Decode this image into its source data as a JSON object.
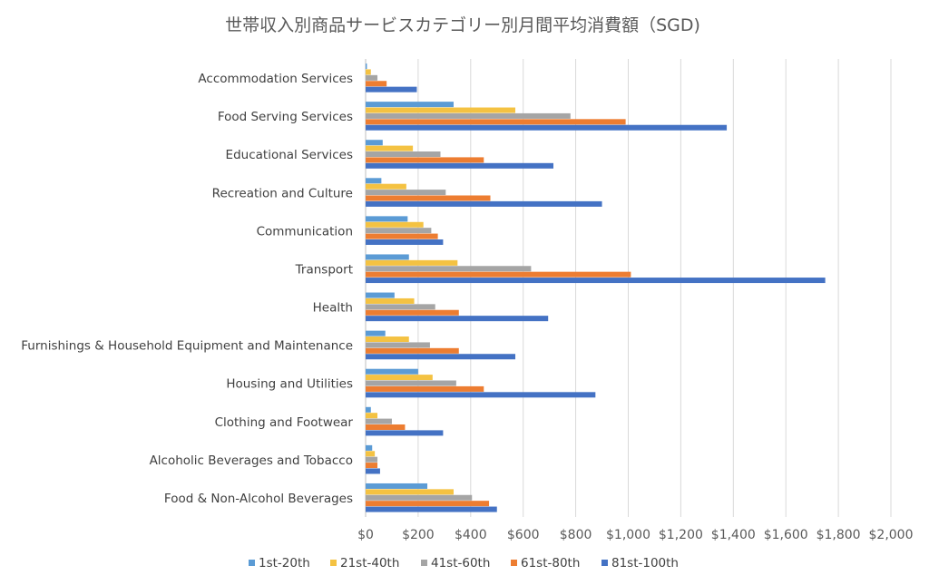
{
  "chart_data": {
    "type": "bar",
    "orientation": "horizontal",
    "title": "世帯収入別商品サービスカテゴリー別月間平均消費額（SGD)",
    "xlim": [
      0,
      2000
    ],
    "x_ticks": [
      "$0",
      "$200",
      "$400",
      "$600",
      "$800",
      "$1,000",
      "$1,200",
      "$1,400",
      "$1,600",
      "$1,800",
      "$2,000"
    ],
    "grid": "vertical",
    "legend_position": "bottom",
    "categories": [
      "Accommodation Services",
      "Food Serving Services",
      "Educational Services",
      "Recreation and Culture",
      "Communication",
      "Transport",
      "Health",
      "Furnishings & Household Equipment and Maintenance",
      "Housing and Utilities",
      "Clothing and Footwear",
      "Alcoholic Beverages and Tobacco",
      "Food & Non-Alcohol Beverages"
    ],
    "series": [
      {
        "name": "1st-20th",
        "color": "#5b9bd5",
        "values": [
          5,
          335,
          65,
          60,
          160,
          165,
          110,
          75,
          200,
          20,
          25,
          235
        ]
      },
      {
        "name": "21st-40th",
        "color": "#f4c242",
        "values": [
          20,
          570,
          180,
          155,
          220,
          350,
          185,
          165,
          255,
          45,
          35,
          335
        ]
      },
      {
        "name": "41st-60th",
        "color": "#a5a5a5",
        "values": [
          45,
          780,
          285,
          305,
          250,
          630,
          265,
          245,
          345,
          100,
          45,
          405
        ]
      },
      {
        "name": "61st-80th",
        "color": "#ed7d31",
        "values": [
          80,
          990,
          450,
          475,
          275,
          1010,
          355,
          355,
          450,
          150,
          45,
          470
        ]
      },
      {
        "name": "81st-100th",
        "color": "#4472c4",
        "values": [
          195,
          1375,
          715,
          900,
          295,
          1750,
          695,
          570,
          875,
          295,
          55,
          500
        ]
      }
    ]
  }
}
